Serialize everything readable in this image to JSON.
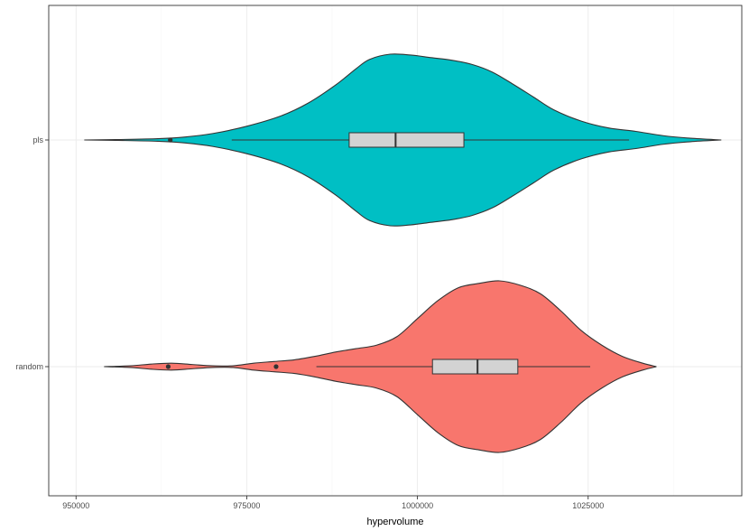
{
  "chart_data": {
    "type": "violin",
    "xlabel": "hypervolume",
    "ylabel": "",
    "xlim": [
      946000,
      1047500
    ],
    "x_ticks": [
      950000,
      975000,
      1000000,
      1025000
    ],
    "x_tick_labels": [
      "950000",
      "975000",
      "1000000",
      "1025000"
    ],
    "categories": [
      "pls",
      "random"
    ],
    "grid": true,
    "series": [
      {
        "category": "pls",
        "color": "#00BFC4",
        "box": {
          "q1": 990000,
          "median": 996800,
          "q3": 1006800,
          "whisker_low": 972800,
          "whisker_high": 1031000
        },
        "outliers": [
          963800
        ],
        "density": [
          [
            951200,
            0.0
          ],
          [
            956000,
            0.005
          ],
          [
            962000,
            0.015
          ],
          [
            966000,
            0.035
          ],
          [
            970000,
            0.075
          ],
          [
            975000,
            0.16
          ],
          [
            980000,
            0.28
          ],
          [
            984000,
            0.43
          ],
          [
            988000,
            0.64
          ],
          [
            991000,
            0.83
          ],
          [
            993000,
            0.94
          ],
          [
            996000,
            1.0
          ],
          [
            999000,
            0.99
          ],
          [
            1002000,
            0.96
          ],
          [
            1005000,
            0.93
          ],
          [
            1008000,
            0.88
          ],
          [
            1011000,
            0.79
          ],
          [
            1014000,
            0.65
          ],
          [
            1017000,
            0.5
          ],
          [
            1020000,
            0.35
          ],
          [
            1024000,
            0.22
          ],
          [
            1028000,
            0.14
          ],
          [
            1032000,
            0.1
          ],
          [
            1036000,
            0.05
          ],
          [
            1040000,
            0.02
          ],
          [
            1044500,
            0.0
          ]
        ]
      },
      {
        "category": "random",
        "color": "#F8766D",
        "box": {
          "q1": 1002200,
          "median": 1008800,
          "q3": 1014700,
          "whisker_low": 985200,
          "whisker_high": 1025300
        },
        "outliers": [
          963500,
          979300
        ],
        "density": [
          [
            954100,
            0.0
          ],
          [
            958000,
            0.01
          ],
          [
            961000,
            0.03
          ],
          [
            964000,
            0.04
          ],
          [
            967000,
            0.025
          ],
          [
            970000,
            0.01
          ],
          [
            973000,
            0.01
          ],
          [
            976000,
            0.04
          ],
          [
            979000,
            0.06
          ],
          [
            982000,
            0.08
          ],
          [
            985000,
            0.12
          ],
          [
            988000,
            0.17
          ],
          [
            991000,
            0.21
          ],
          [
            994000,
            0.25
          ],
          [
            997000,
            0.35
          ],
          [
            1000000,
            0.56
          ],
          [
            1003000,
            0.77
          ],
          [
            1006000,
            0.92
          ],
          [
            1009000,
            0.97
          ],
          [
            1012000,
            1.0
          ],
          [
            1015000,
            0.95
          ],
          [
            1018000,
            0.85
          ],
          [
            1021000,
            0.65
          ],
          [
            1024000,
            0.42
          ],
          [
            1027000,
            0.25
          ],
          [
            1030000,
            0.12
          ],
          [
            1033000,
            0.04
          ],
          [
            1035000,
            0.0
          ]
        ]
      }
    ]
  }
}
